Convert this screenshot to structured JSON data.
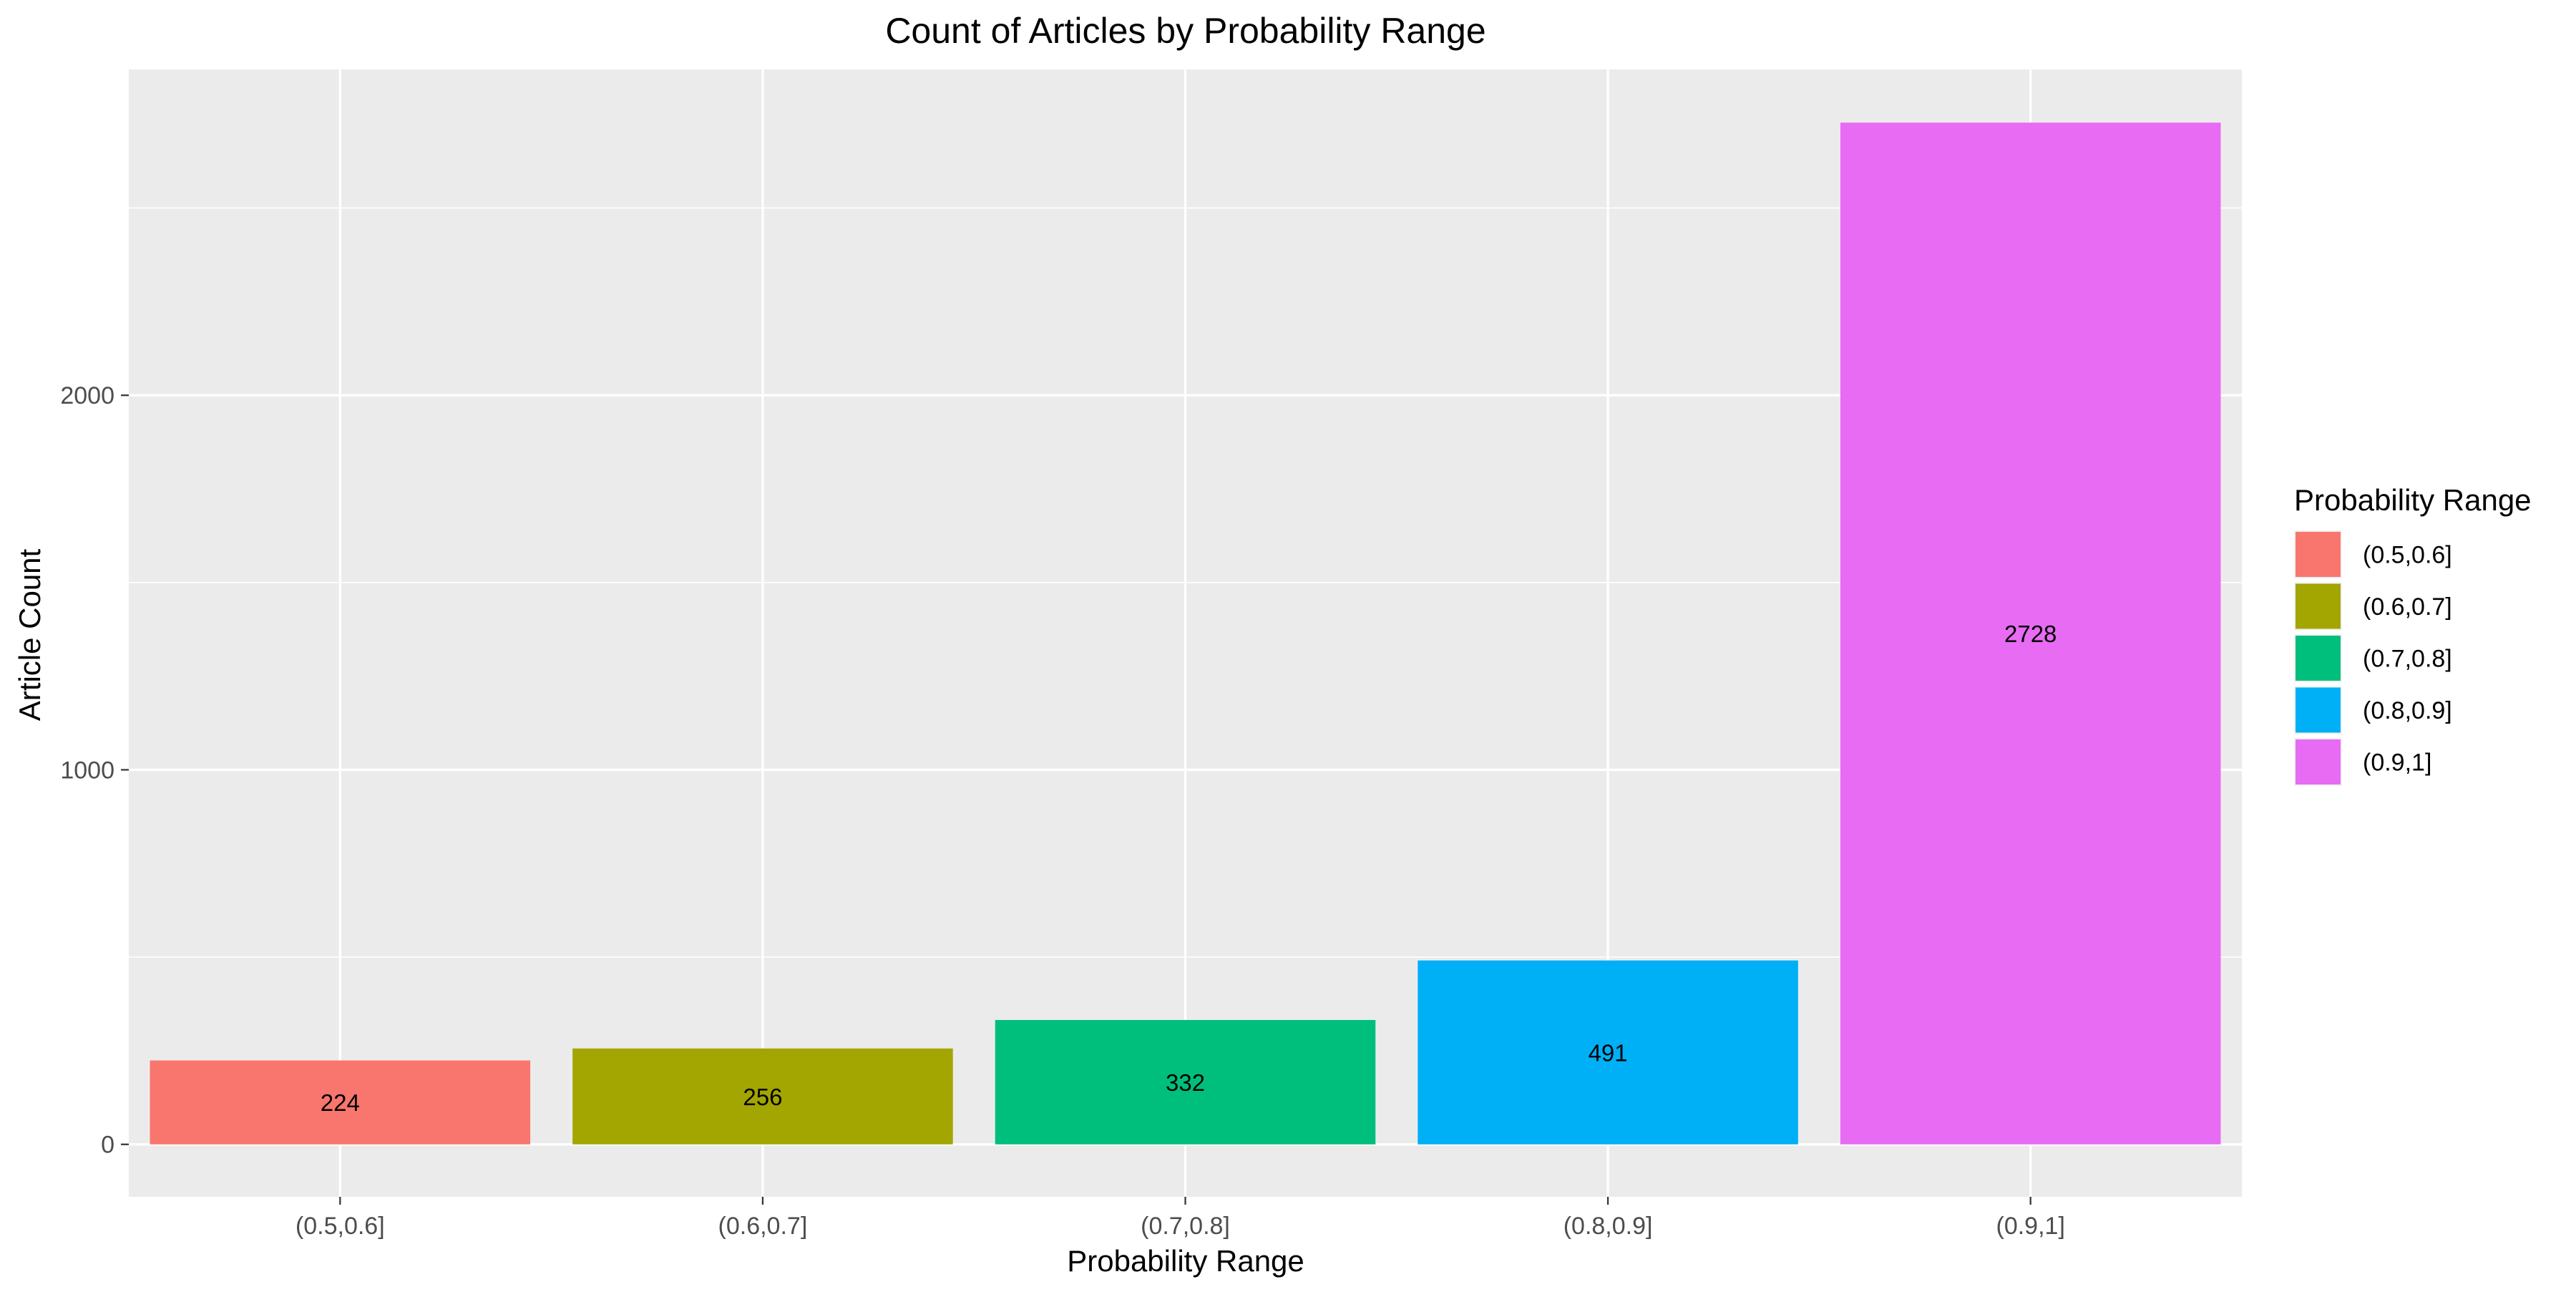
{
  "chart_data": {
    "type": "bar",
    "title": "Count of Articles by Probability Range",
    "xlabel": "Probability Range",
    "ylabel": "Article Count",
    "categories": [
      "(0.5,0.6]",
      "(0.6,0.7]",
      "(0.7,0.8]",
      "(0.8,0.9]",
      "(0.9,1]"
    ],
    "values": [
      224,
      256,
      332,
      491,
      2728
    ],
    "data_labels": [
      "224",
      "256",
      "332",
      "491",
      "2728"
    ],
    "colors": [
      "#F8766D",
      "#A3A500",
      "#00BF7D",
      "#00B0F6",
      "#E76BF3"
    ],
    "ylim": [
      -140,
      2870
    ],
    "y_ticks": [
      0,
      1000,
      2000
    ],
    "y_tick_labels": [
      "0",
      "1000",
      "2000"
    ],
    "grid": true,
    "panel_background": "#EBEBEB",
    "grid_color": "#FFFFFF",
    "legend": {
      "title": "Probability Range",
      "placement": "right",
      "entries": [
        "(0.5,0.6]",
        "(0.6,0.7]",
        "(0.7,0.8]",
        "(0.8,0.9]",
        "(0.9,1]"
      ]
    }
  }
}
